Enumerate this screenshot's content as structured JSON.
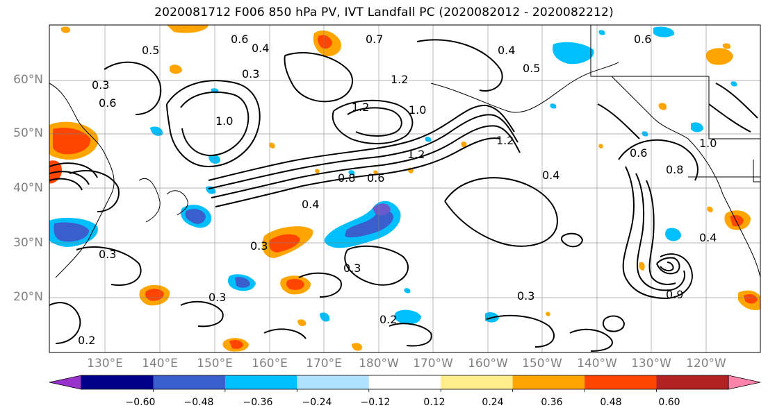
{
  "title": "2020081712 F006 850 hPa PV, IVT Landfall PC (2020082012 - 2020082212)",
  "map": {
    "lat_labels": [
      "60°N",
      "50°N",
      "40°N",
      "30°N",
      "20°N"
    ],
    "lon_labels": [
      "130°E",
      "140°E",
      "150°E",
      "160°E",
      "170°E",
      "180°W",
      "170°W",
      "160°W",
      "150°W",
      "140°W",
      "130°W",
      "120°W"
    ],
    "contour_labels": [
      "0.7",
      "0.6",
      "0.4",
      "0.5",
      "0.3",
      "0.3",
      "0.6",
      "1.0",
      "1.2",
      "1.2",
      "1.0",
      "1.2",
      "0.6",
      "0.4",
      "0.4",
      "0.3",
      "0.3",
      "0.3",
      "0.3",
      "0.3",
      "0.2",
      "0.2",
      "0.4",
      "0.6",
      "0.6",
      "0.8",
      "0.4",
      "1.2",
      "1.0",
      "0.8",
      "0.9",
      "0.5"
    ],
    "background": "#ffffff",
    "grid_color": "#808080",
    "contour_color": "#000000"
  },
  "colorbar": {
    "colors": [
      "#9932cc",
      "#00008b",
      "#3a5fcd",
      "#00bfff",
      "#b0e2ff",
      "#ffffff",
      "#ffec8b",
      "#ffa500",
      "#ff4500",
      "#b22222",
      "#ff82ab"
    ],
    "tick_labels": [
      "−0.60",
      "−0.48",
      "−0.36",
      "−0.24",
      "−0.12",
      "0.12",
      "0.24",
      "0.36",
      "0.48",
      "0.60"
    ]
  }
}
